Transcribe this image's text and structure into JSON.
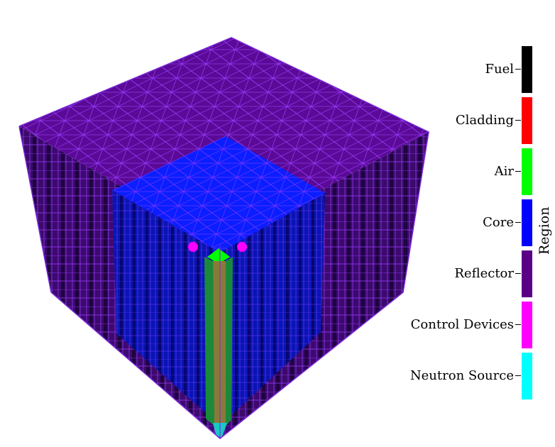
{
  "legend": {
    "title": "Region",
    "items": [
      {
        "label": "Fuel",
        "color": "#000000"
      },
      {
        "label": "Cladding",
        "color": "#ff0000"
      },
      {
        "label": "Air",
        "color": "#00ff00"
      },
      {
        "label": "Core",
        "color": "#0000ff"
      },
      {
        "label": "Reflector",
        "color": "#5a0087"
      },
      {
        "label": "Control Devices",
        "color": "#ff00ff"
      },
      {
        "label": "Neutron Source",
        "color": "#00ffff"
      }
    ]
  },
  "colors": {
    "reflector_top": "#5a0a96",
    "reflector_side": "#3c0a6e",
    "mesh_line": "#9b3cff",
    "core_top": "#0a1eff",
    "core_side": "#0a14b4",
    "fuel_pin_side": "#8a7a3a"
  }
}
